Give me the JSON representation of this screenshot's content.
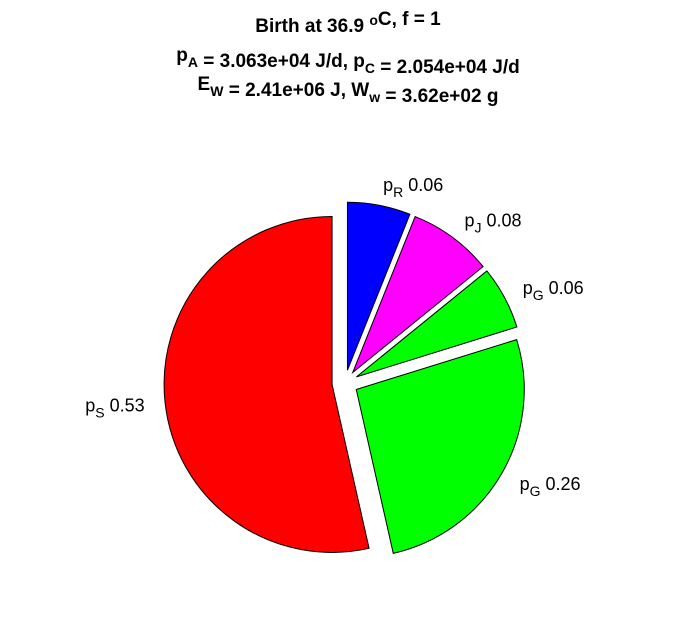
{
  "chart_data": {
    "type": "pie",
    "title_lines": [
      [
        {
          "text": "Birth at 36.9 "
        },
        {
          "sup": "o"
        },
        {
          "text": "C, f = 1"
        }
      ],
      [
        {
          "text": "p"
        },
        {
          "sub": "A"
        },
        {
          "text": " = 3.063e+04 J/d, p"
        },
        {
          "sub": "C"
        },
        {
          "text": " = 2.054e+04 J/d"
        }
      ],
      [
        {
          "text": "E"
        },
        {
          "sub": "W"
        },
        {
          "text": " = 2.41e+06 J, W"
        },
        {
          "sub": "w"
        },
        {
          "text": " = 3.62e+02 g"
        }
      ]
    ],
    "categories": [
      {
        "text": "p",
        "sub": "R"
      },
      {
        "text": "p",
        "sub": "J"
      },
      {
        "text": "p",
        "sub": "G"
      },
      {
        "text": "p",
        "sub": "G"
      },
      {
        "text": "p",
        "sub": "S"
      }
    ],
    "values": [
      0.06,
      0.08,
      0.06,
      0.26,
      0.53
    ],
    "colors": [
      "#0000ff",
      "#ff00ff",
      "#00ff00",
      "#00ff00",
      "#ff0000"
    ],
    "start": "top",
    "direction": "clockwise",
    "exploded": true
  }
}
